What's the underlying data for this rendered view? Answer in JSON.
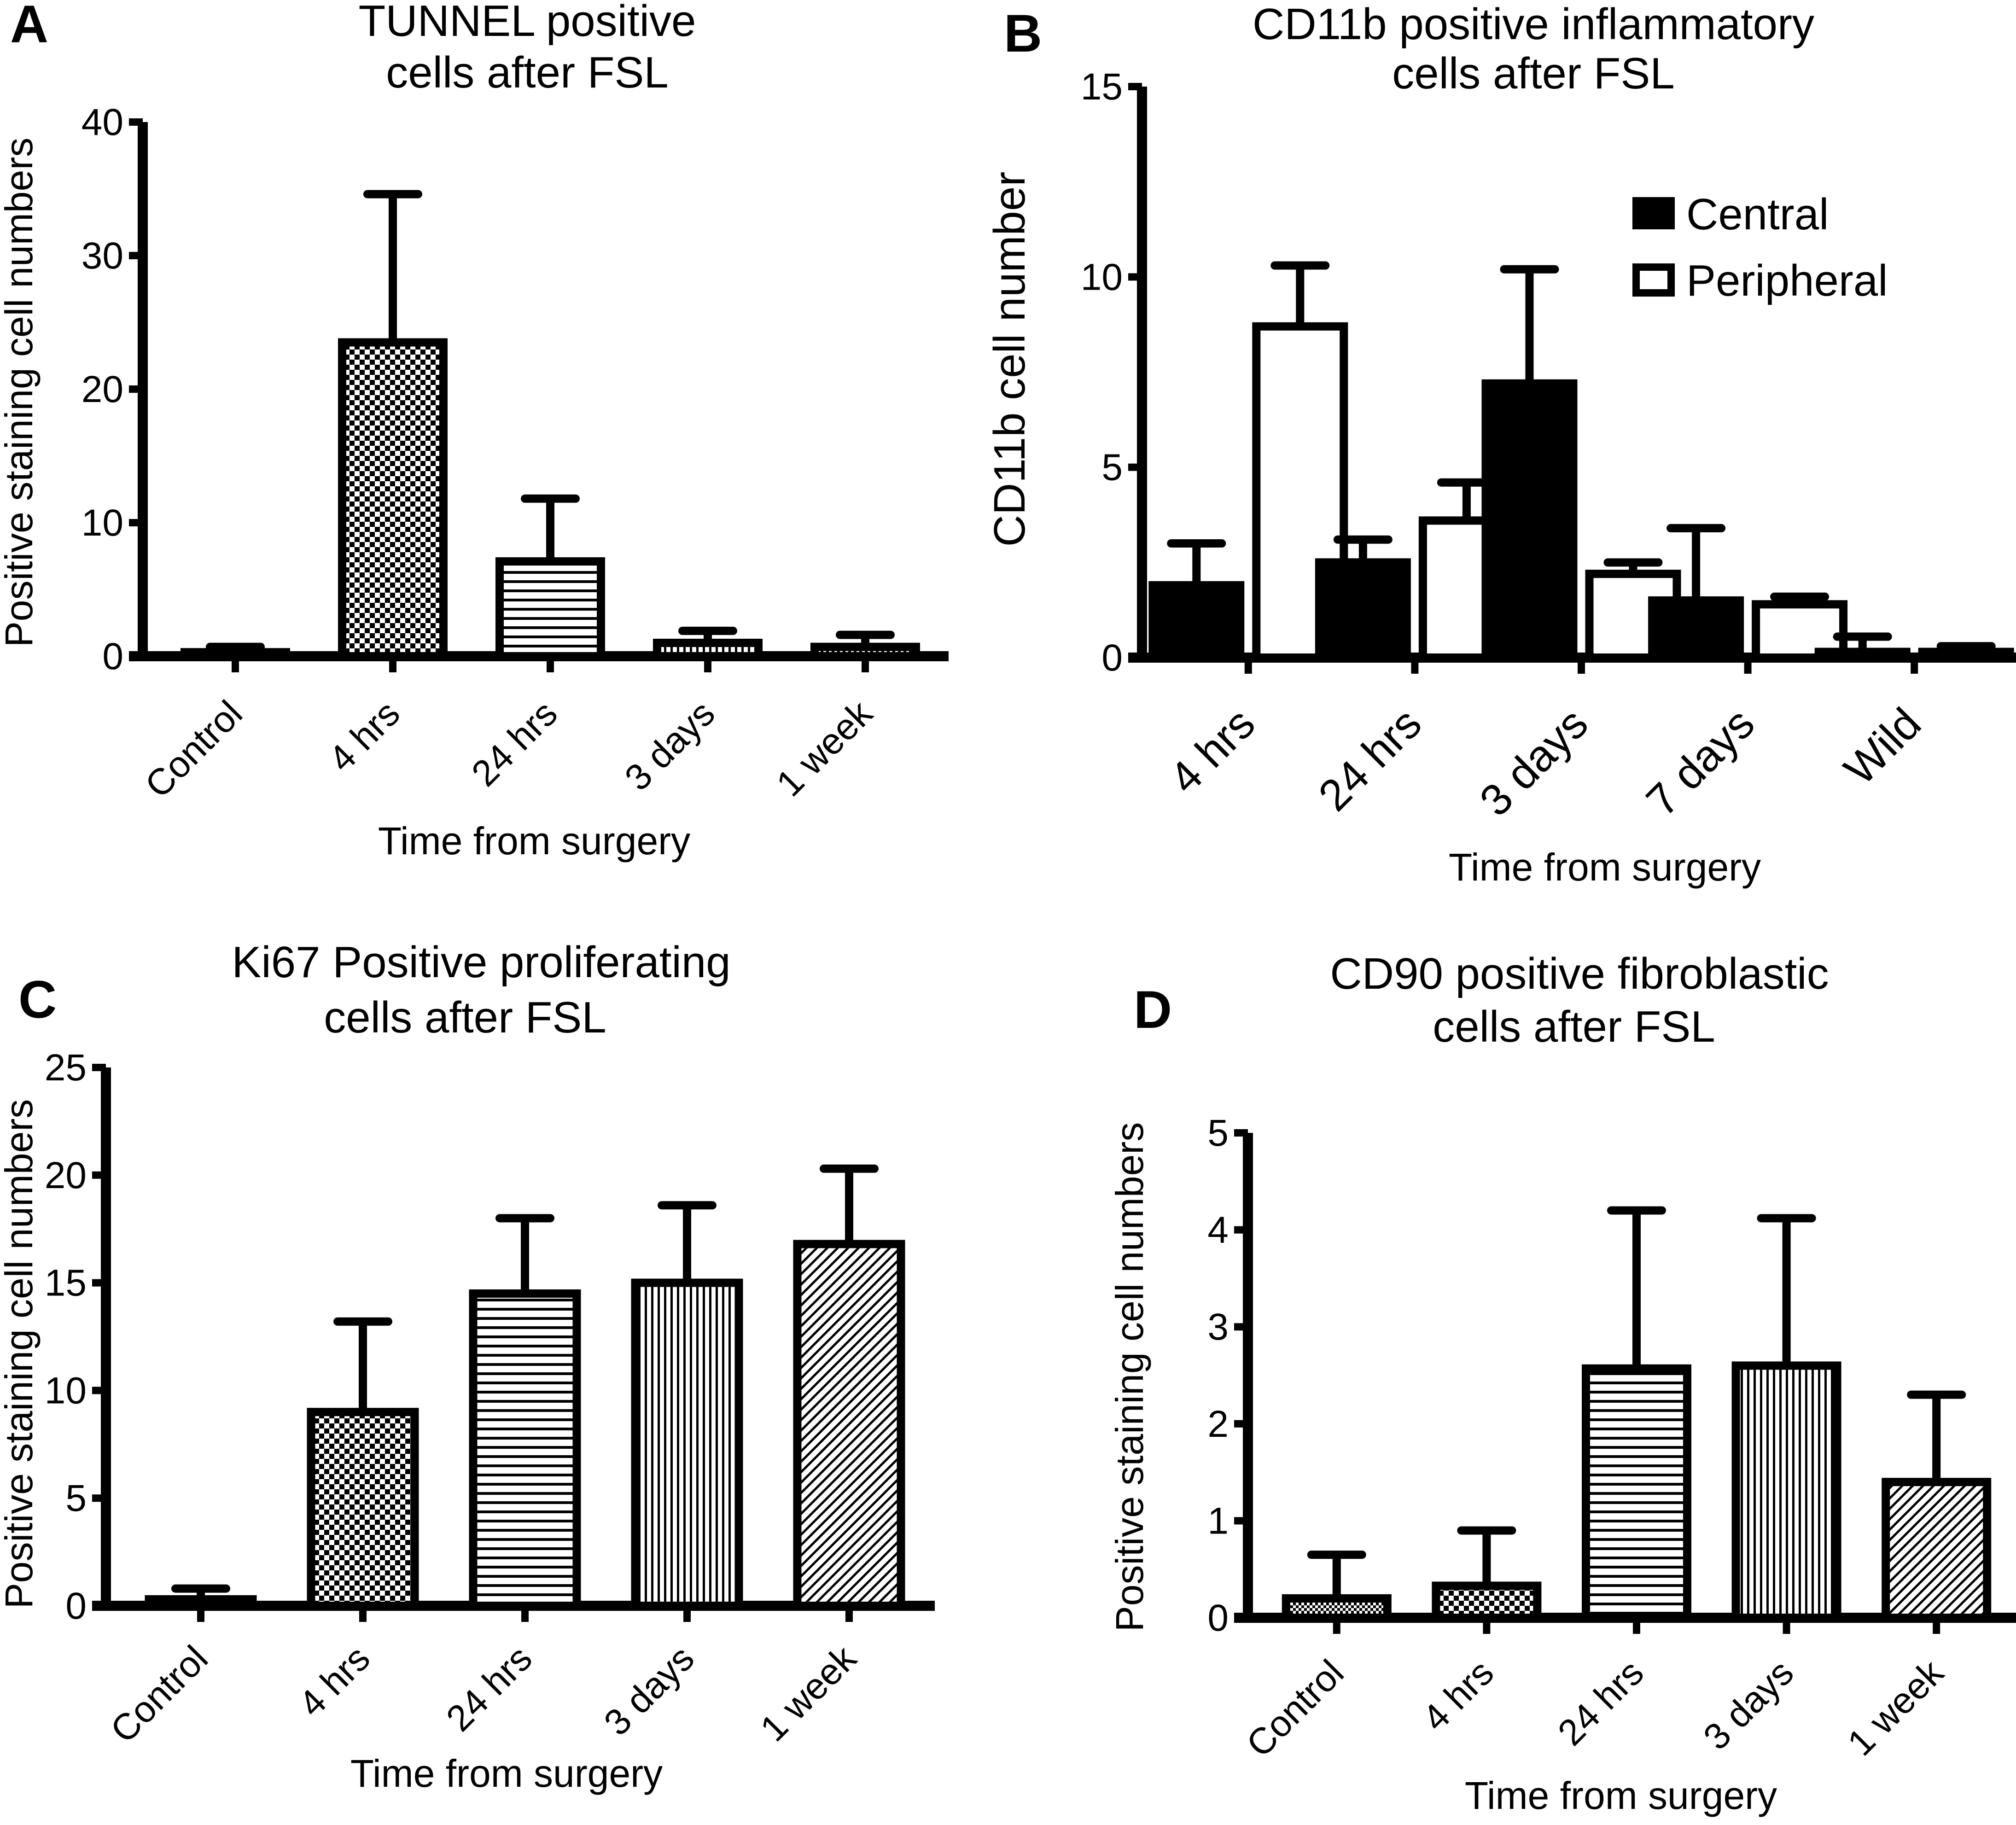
{
  "chart_data": [
    {
      "panel": "A",
      "type": "bar",
      "title": "TUNNEL positive cells after FSL",
      "title_lines": [
        "TUNNEL positive",
        "cells after FSL"
      ],
      "xlabel": "Time from surgery",
      "ylabel": "Positive staining cell numbers",
      "ylim": [
        0,
        40
      ],
      "yticks": [
        0,
        10,
        20,
        30,
        40
      ],
      "grid": false,
      "categories": [
        "Control",
        "4 hrs",
        "24 hrs",
        "3 days",
        "1 week"
      ],
      "values": [
        0.3,
        23.5,
        7.1,
        1.0,
        0.7
      ],
      "error_upper": [
        0.7,
        34.6,
        11.8,
        1.9,
        1.6
      ],
      "fill_patterns": [
        "dots",
        "checker",
        "hlines",
        "vlines",
        "dots"
      ]
    },
    {
      "panel": "B",
      "type": "bar",
      "title": "CD11b positive inflammatory cells after FSL",
      "title_lines": [
        "CD11b positive inflammatory",
        "cells after FSL"
      ],
      "xlabel": "Time from surgery",
      "ylabel": "CD11b cell number",
      "ylim": [
        0,
        15
      ],
      "yticks": [
        0,
        5,
        10,
        15
      ],
      "grid": false,
      "legend_position": "top-right",
      "categories": [
        "4 hrs",
        "24 hrs",
        "3 days",
        "7 days",
        "Wild"
      ],
      "series": [
        {
          "name": "Central",
          "fill": "solid-black",
          "values": [
            1.9,
            2.5,
            7.2,
            1.5,
            0.15
          ],
          "error_upper": [
            3.0,
            3.1,
            10.2,
            3.4,
            0.55
          ]
        },
        {
          "name": "Peripheral",
          "fill": "white",
          "values": [
            8.7,
            3.6,
            2.2,
            1.4,
            0.15
          ],
          "error_upper": [
            10.3,
            4.6,
            2.5,
            1.6,
            0.3
          ]
        }
      ]
    },
    {
      "panel": "C",
      "type": "bar",
      "title": "Ki67 Positive proliferating cells after FSL",
      "title_lines": [
        "Ki67 Positive proliferating",
        "cells after FSL"
      ],
      "xlabel": "Time from surgery",
      "ylabel": "Positive staining cell numbers",
      "ylim": [
        0,
        25
      ],
      "yticks": [
        0,
        5,
        10,
        15,
        20,
        25
      ],
      "grid": false,
      "categories": [
        "Control",
        "4 hrs",
        "24 hrs",
        "3 days",
        "1 week"
      ],
      "values": [
        0.3,
        9.0,
        14.5,
        15.0,
        16.8
      ],
      "error_upper": [
        0.8,
        13.2,
        18.0,
        18.6,
        20.3
      ],
      "fill_patterns": [
        "dots",
        "checker",
        "hlines",
        "vlines",
        "diag"
      ]
    },
    {
      "panel": "D",
      "type": "bar",
      "title": "CD90 positive fibroblastic cells after FSL",
      "title_lines": [
        "CD90 positive fibroblastic",
        "cells after FSL"
      ],
      "xlabel": "Time from surgery",
      "ylabel": "Positive staining cell numbers",
      "ylim": [
        0,
        5
      ],
      "yticks": [
        0,
        1,
        2,
        3,
        4,
        5
      ],
      "grid": false,
      "categories": [
        "Control",
        "4 hrs",
        "24 hrs",
        "3 days",
        "1 week"
      ],
      "values": [
        0.2,
        0.33,
        2.57,
        2.6,
        1.4
      ],
      "error_upper": [
        0.65,
        0.9,
        4.2,
        4.12,
        2.3
      ],
      "fill_patterns": [
        "dots",
        "checker",
        "hlines",
        "vlines",
        "diag"
      ]
    }
  ],
  "colors": {
    "ink": "#000000",
    "paper": "#ffffff"
  }
}
